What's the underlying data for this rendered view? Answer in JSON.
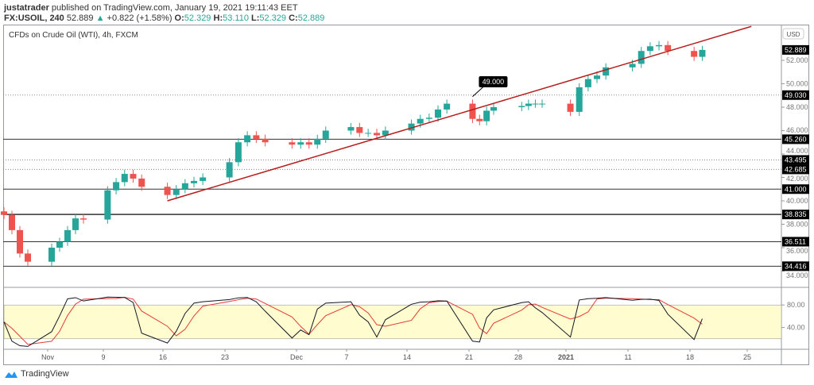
{
  "header": {
    "author": "justatrader",
    "published": "published on TradingView.com, January 19, 2021 19:11:43 EET",
    "symbol": "FX:USOIL, 240",
    "last": "52.889",
    "change": "+0.822 (+1.58%)",
    "o_label": "O:",
    "o": "52.329",
    "h_label": "H:",
    "h": "53.110",
    "l_label": "L:",
    "l": "52.329",
    "c_label": "C:",
    "c": "52.889"
  },
  "chart_title": "CFDs on Crude Oil (WTI), 4h, FXCM",
  "footer": {
    "brand": "TradingView"
  },
  "colors": {
    "up": "#26a69a",
    "down": "#ef5350",
    "trendline": "#b71c1c",
    "stoch_band": "#fffdd0",
    "k_line": "#131722",
    "d_line": "#e53935"
  },
  "chart_data": {
    "type": "candlestick",
    "currency": "USD",
    "ylim": [
      33.5,
      55.5
    ],
    "yticks": [
      "52.000",
      "50.000",
      "48.000",
      "46.000",
      "44.000",
      "42.000",
      "40.000",
      "38.000",
      "36.000",
      "34.000"
    ],
    "last_price_label": "52.889",
    "xticks": [
      {
        "label": "Nov",
        "date": "2020-11-02"
      },
      {
        "label": "9",
        "date": "2020-11-09"
      },
      {
        "label": "16",
        "date": "2020-11-16"
      },
      {
        "label": "23",
        "date": "2020-11-23"
      },
      {
        "label": "Dec",
        "date": "2020-12-01"
      },
      {
        "label": "7",
        "date": "2020-12-07"
      },
      {
        "label": "14",
        "date": "2020-12-14"
      },
      {
        "label": "21",
        "date": "2020-12-21"
      },
      {
        "label": "28",
        "date": "2020-12-28"
      },
      {
        "label": "2021",
        "date": "2021-01-04"
      },
      {
        "label": "11",
        "date": "2021-01-11"
      },
      {
        "label": "18",
        "date": "2021-01-18"
      },
      {
        "label": "25",
        "date": "2021-01-25"
      }
    ],
    "closes": [
      [
        "2020-10-27",
        38.8
      ],
      [
        "2020-10-28",
        37.5
      ],
      [
        "2020-10-29",
        35.5
      ],
      [
        "2020-10-30",
        34.8
      ],
      [
        "2020-11-02",
        36.0
      ],
      [
        "2020-11-03",
        36.5
      ],
      [
        "2020-11-04",
        37.5
      ],
      [
        "2020-11-05",
        38.5
      ],
      [
        "2020-11-06",
        38.4
      ],
      [
        "2020-11-09",
        40.9
      ],
      [
        "2020-11-10",
        41.6
      ],
      [
        "2020-11-11",
        42.3
      ],
      [
        "2020-11-12",
        41.9
      ],
      [
        "2020-11-13",
        41.2
      ],
      [
        "2020-11-16",
        40.5
      ],
      [
        "2020-11-17",
        41.0
      ],
      [
        "2020-11-18",
        41.5
      ],
      [
        "2020-11-19",
        41.7
      ],
      [
        "2020-11-20",
        42.0
      ],
      [
        "2020-11-23",
        43.3
      ],
      [
        "2020-11-24",
        45.0
      ],
      [
        "2020-11-25",
        45.6
      ],
      [
        "2020-11-26",
        45.3
      ],
      [
        "2020-11-27",
        45.0
      ],
      [
        "2020-11-30",
        44.8
      ],
      [
        "2020-12-01",
        45.0
      ],
      [
        "2020-12-02",
        44.8
      ],
      [
        "2020-12-03",
        45.3
      ],
      [
        "2020-12-04",
        46.0
      ],
      [
        "2020-12-07",
        46.3
      ],
      [
        "2020-12-08",
        45.8
      ],
      [
        "2020-12-09",
        45.8
      ],
      [
        "2020-12-10",
        45.6
      ],
      [
        "2020-12-11",
        46.0
      ],
      [
        "2020-12-14",
        46.6
      ],
      [
        "2020-12-15",
        47.0
      ],
      [
        "2020-12-16",
        47.1
      ],
      [
        "2020-12-17",
        47.8
      ],
      [
        "2020-12-18",
        48.3
      ],
      [
        "2020-12-21",
        47.0
      ],
      [
        "2020-12-22",
        46.8
      ],
      [
        "2020-12-23",
        47.7
      ],
      [
        "2020-12-24",
        48.0
      ],
      [
        "2020-12-28",
        48.1
      ],
      [
        "2020-12-29",
        48.3
      ],
      [
        "2020-12-30",
        48.3
      ],
      [
        "2020-12-31",
        48.3
      ],
      [
        "2021-01-04",
        47.6
      ],
      [
        "2021-01-05",
        49.7
      ],
      [
        "2021-01-06",
        50.4
      ],
      [
        "2021-01-07",
        50.7
      ],
      [
        "2021-01-08",
        51.4
      ],
      [
        "2021-01-11",
        51.7
      ],
      [
        "2021-01-12",
        52.8
      ],
      [
        "2021-01-13",
        53.2
      ],
      [
        "2021-01-14",
        53.3
      ],
      [
        "2021-01-15",
        52.8
      ],
      [
        "2021-01-18",
        52.3
      ],
      [
        "2021-01-19",
        52.889
      ]
    ],
    "horizontal_levels": [
      {
        "value": 49.03,
        "label": "49.030",
        "style": "dotted"
      },
      {
        "value": 45.26,
        "label": "45.260",
        "style": "solid"
      },
      {
        "value": 43.495,
        "label": "43.495",
        "style": "dotted"
      },
      {
        "value": 42.685,
        "label": "42.685",
        "style": "dotted"
      },
      {
        "value": 41.0,
        "label": "41.000",
        "style": "solid"
      },
      {
        "value": 38.835,
        "label": "38.835",
        "style": "solid"
      },
      {
        "value": 36.511,
        "label": "36.511",
        "style": "solid"
      },
      {
        "value": 34.416,
        "label": "34.416",
        "style": "solid"
      }
    ],
    "trendline": {
      "start": [
        "2020-11-16",
        40.0
      ],
      "end": [
        "2021-01-25",
        54.9
      ]
    },
    "callout": {
      "label": "49.000",
      "date": "2020-12-21",
      "value": 48.9
    },
    "stochastic": {
      "ylim": [
        0,
        100
      ],
      "yticks": [
        "80.00",
        "40.00"
      ],
      "band": [
        20,
        80
      ]
    }
  }
}
